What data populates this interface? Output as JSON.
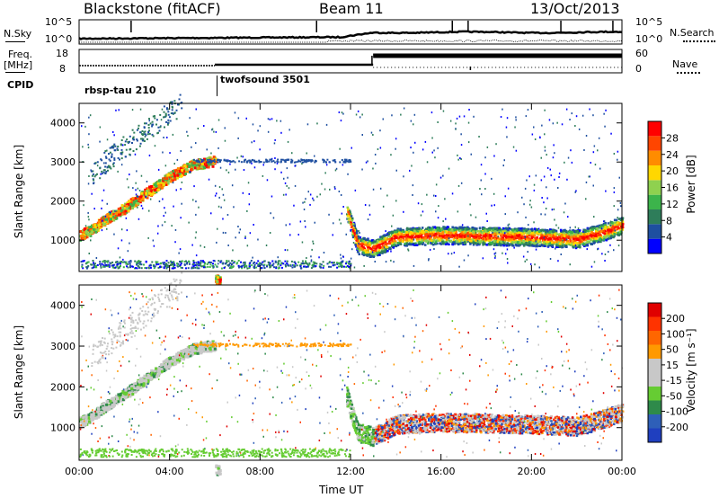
{
  "header": {
    "station": "Blackstone (fitACF)",
    "beam": "Beam 11",
    "date": "13/Oct/2013"
  },
  "noise_panel": {
    "left_label": "N.Sky",
    "right_label": "N.Search",
    "left_ticks": [
      "10^5",
      "10^0"
    ],
    "right_ticks": [
      "10^5",
      "10^0"
    ]
  },
  "freq_panel": {
    "left_label_top": "Freq.",
    "left_label_bottom": "[MHz]",
    "right_label": "Nave",
    "left_ticks": [
      "18",
      "8"
    ],
    "right_ticks": [
      "60",
      "0"
    ]
  },
  "cpid_panel": {
    "label": "CPID",
    "entries": [
      {
        "name": "rbsp-tau 210",
        "start_hour": 0
      },
      {
        "name": "twofsound 3501",
        "start_hour": 6
      }
    ]
  },
  "time_axis": {
    "title": "Time UT",
    "ticks": [
      "00:00",
      "04:00",
      "08:00",
      "12:00",
      "16:00",
      "20:00",
      "00:00"
    ]
  },
  "colors": {
    "power": [
      "#0000ff",
      "#1e4fa0",
      "#2e7d5a",
      "#3cb44b",
      "#8fd14f",
      "#ffd700",
      "#ff8c00",
      "#ff4500",
      "#ff0000"
    ],
    "velocity": [
      "#1f3fbf",
      "#2e5fb8",
      "#2e8a4a",
      "#66cc33",
      "#c8c8c8",
      "#c8c8c8",
      "#ff9900",
      "#ff6600",
      "#ff3300",
      "#e00000"
    ]
  },
  "chart_data": [
    {
      "type": "heatmap",
      "name": "power",
      "ylabel": "Slant Range [km]",
      "xlabel": "Time UT",
      "xlim_hours": [
        0,
        24
      ],
      "ylim": [
        200,
        4500
      ],
      "yticks": [
        "1000",
        "2000",
        "3000",
        "4000"
      ],
      "colorbar": {
        "label": "Power [dB]",
        "ticks": [
          "28",
          "24",
          "20",
          "16",
          "12",
          "8",
          "4"
        ]
      },
      "features": [
        {
          "label": "",
          "points": [
            [
              0.0,
              1150
            ],
            [
              0.5,
              1280
            ],
            [
              1.0,
              1500
            ],
            [
              2.0,
              1850
            ],
            [
              3.0,
              2250
            ],
            [
              4.0,
              2650
            ],
            [
              5.0,
              2950
            ],
            [
              6.0,
              3050
            ]
          ]
        },
        {
          "label": "",
          "points": [
            [
              11.8,
              1800
            ],
            [
              12.3,
              900
            ],
            [
              13.0,
              800
            ],
            [
              14.0,
              1100
            ],
            [
              16.0,
              1150
            ],
            [
              20.0,
              1100
            ],
            [
              22.0,
              1050
            ],
            [
              23.0,
              1200
            ],
            [
              24.0,
              1400
            ]
          ]
        }
      ]
    },
    {
      "type": "heatmap",
      "name": "velocity",
      "ylabel": "Slant Range [km]",
      "xlabel": "Time UT",
      "xlim_hours": [
        0,
        24
      ],
      "ylim": [
        200,
        4500
      ],
      "yticks": [
        "1000",
        "2000",
        "3000",
        "4000"
      ],
      "colorbar": {
        "label": "Velocity [m s⁻¹]",
        "ticks": [
          "200",
          "100",
          "50",
          "15",
          "-15",
          "-50",
          "-100",
          "-200"
        ]
      }
    }
  ]
}
